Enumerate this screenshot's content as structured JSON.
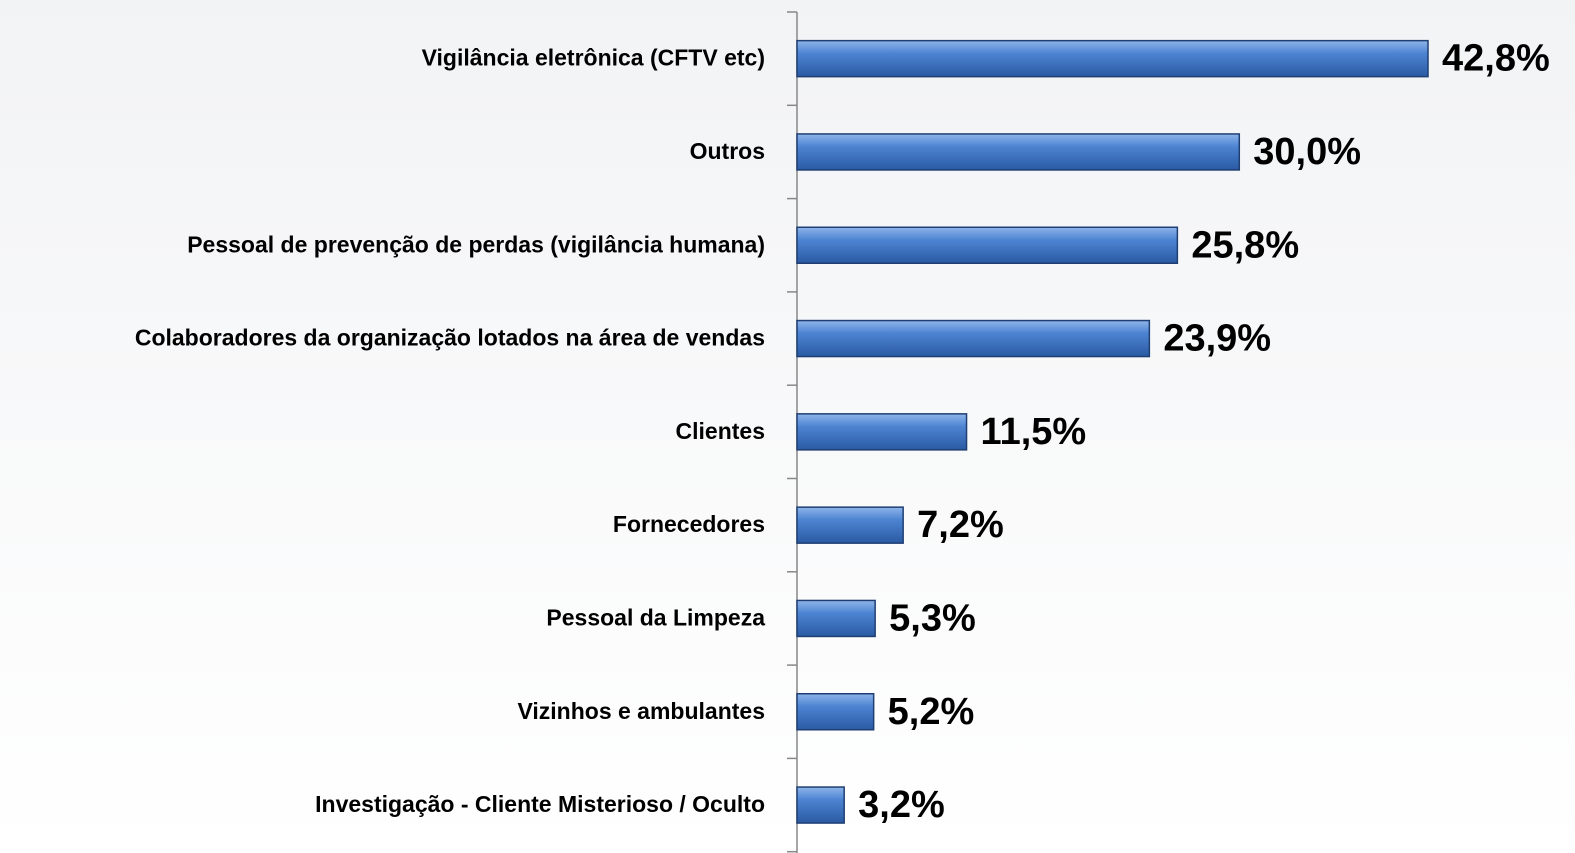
{
  "chart_data": {
    "type": "barh",
    "categories": [
      "Vigilância eletrônica (CFTV etc)",
      "Outros",
      "Pessoal de prevenção de perdas (vigilância humana)",
      "Colaboradores da organização lotados na área de vendas",
      "Clientes",
      "Fornecedores",
      "Pessoal da Limpeza",
      "Vizinhos e ambulantes",
      "Investigação - Cliente Misterioso / Oculto"
    ],
    "values": [
      42.8,
      30.0,
      25.8,
      23.9,
      11.5,
      7.2,
      5.3,
      5.2,
      3.2
    ],
    "value_labels": [
      "42,8%",
      "30,0%",
      "25,8%",
      "23,9%",
      "11,5%",
      "7,2%",
      "5,3%",
      "5,2%",
      "3,2%"
    ],
    "color": "#3a72c4"
  }
}
